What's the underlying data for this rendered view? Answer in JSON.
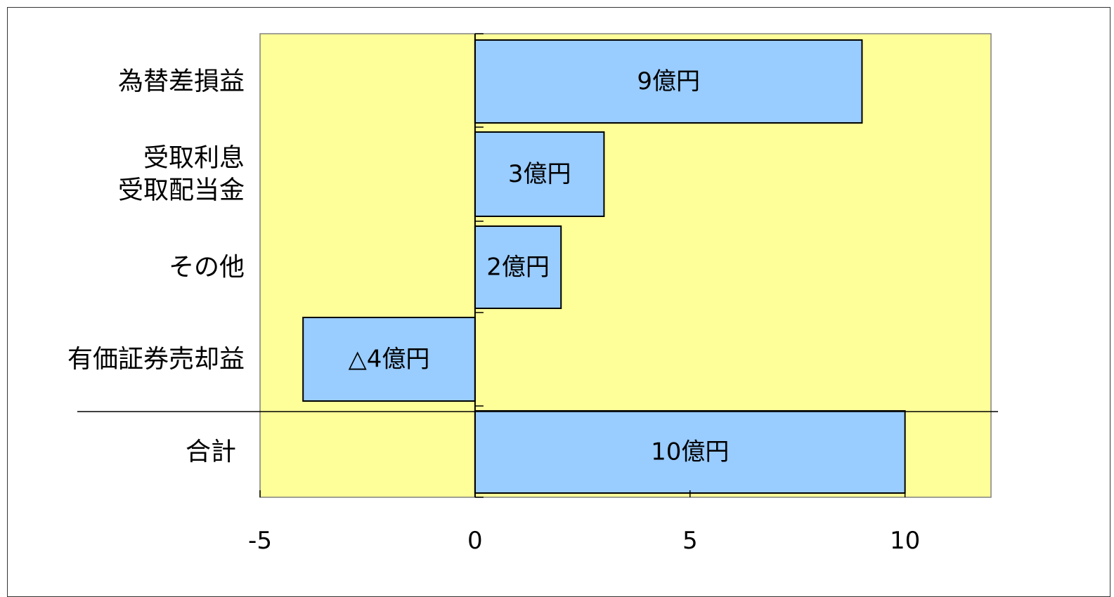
{
  "chart_data": {
    "type": "bar",
    "orientation": "horizontal",
    "title": "",
    "xlabel": "",
    "ylabel": "",
    "xlim": [
      -5,
      12
    ],
    "x_ticks": [
      -5,
      0,
      5,
      10
    ],
    "x_tick_labels": [
      "-5",
      "0",
      "5",
      "10"
    ],
    "grid": false,
    "legend": "none",
    "categories": [
      {
        "lines": [
          "為替差損益"
        ],
        "value": 9,
        "label": "9億円"
      },
      {
        "lines": [
          "受取利息",
          "受取配当金"
        ],
        "value": 3,
        "label": "3億円"
      },
      {
        "lines": [
          "その他"
        ],
        "value": 2,
        "label": "2億円"
      },
      {
        "lines": [
          "有価証券売却益"
        ],
        "value": -4,
        "label": "△4億円"
      },
      {
        "lines": [
          "合計"
        ],
        "value": 10,
        "label": "10億円"
      }
    ],
    "colors": {
      "plot_background": "#ffff99",
      "bar_fill": "#99ccff",
      "bar_stroke": "#000000"
    }
  }
}
